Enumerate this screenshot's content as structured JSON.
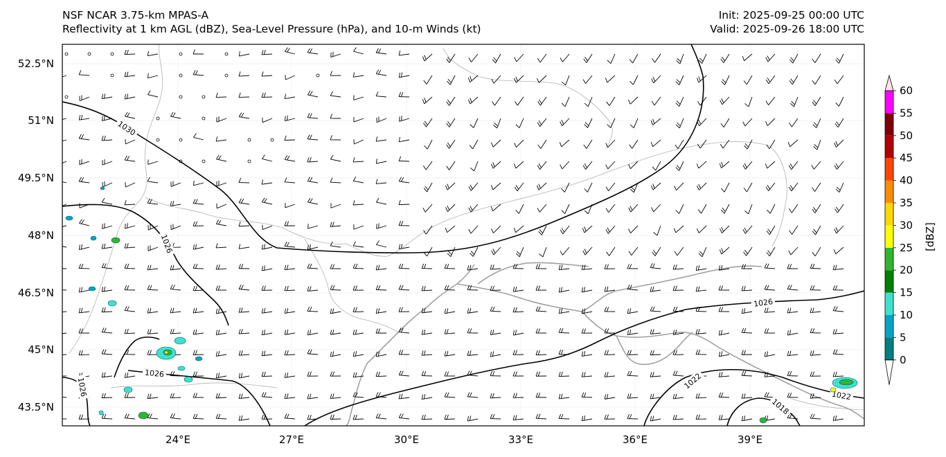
{
  "header": {
    "line1_left": "NSF NCAR 3.75-km MPAS-A",
    "line2_left": "Reflectivity at 1 km AGL (dBZ), Sea-Level Pressure (hPa), and 10-m Winds (kt)",
    "init": "Init: 2025-09-25 00:00 UTC",
    "valid": "Valid: 2025-09-26 18:00 UTC"
  },
  "axes": {
    "lat_labels": [
      "52.5°N",
      "51°N",
      "49.5°N",
      "48°N",
      "46.5°N",
      "45°N",
      "43.5°N"
    ],
    "lon_labels": [
      "24°E",
      "27°E",
      "30°E",
      "33°E",
      "36°E",
      "39°E"
    ]
  },
  "isobars": {
    "labels": [
      "1030",
      "1026",
      "1026",
      "1026",
      "1026",
      "1022",
      "1022",
      "1018"
    ]
  },
  "colorbar": {
    "title": "[dBZ]",
    "ticks": [
      "0",
      "5",
      "10",
      "15",
      "20",
      "25",
      "30",
      "35",
      "40",
      "45",
      "50",
      "55",
      "60"
    ],
    "colors": [
      "#008080",
      "#00a5c8",
      "#40e0d0",
      "#008000",
      "#32b432",
      "#ffff00",
      "#ffd700",
      "#ff8c00",
      "#ff4500",
      "#b40000",
      "#800000",
      "#ff00ff",
      "#ffe4e1"
    ]
  },
  "colors": {
    "isobar": "#000000",
    "border": "#b0b0b0",
    "coast": "#a0a0a0",
    "barb": "#000000"
  }
}
